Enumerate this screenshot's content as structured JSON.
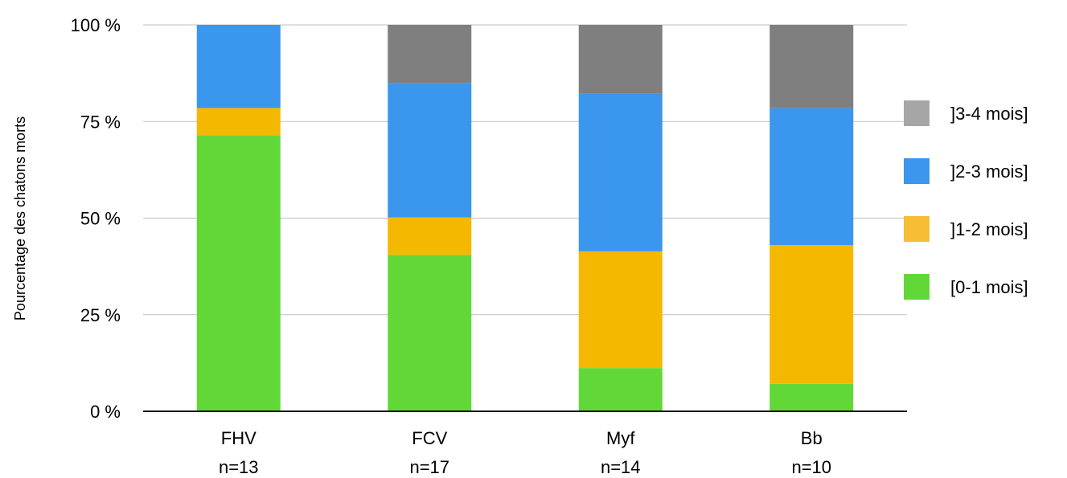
{
  "chart_data": {
    "type": "bar",
    "stacked": true,
    "ylabel": "Pourcentage des chatons morts",
    "ylim": [
      0,
      100
    ],
    "yticks": [
      "0 %",
      "25 %",
      "50 %",
      "75 %",
      "100 %"
    ],
    "ytick_values": [
      0,
      25,
      50,
      75,
      100
    ],
    "grid": true,
    "legend_position": "right",
    "categories": [
      "FHV",
      "FCV",
      "Myf",
      "Bb"
    ],
    "category_sublabels": [
      "n=13",
      "n=17",
      "n=14",
      "n=10"
    ],
    "series": [
      {
        "name": "[0-1 mois]",
        "color": "#62d838",
        "values": [
          71.4,
          40.5,
          11.2,
          7.1
        ]
      },
      {
        "name": "]1-2 mois]",
        "color": "#f5b800",
        "values": [
          7.1,
          9.7,
          30.2,
          35.9
        ]
      },
      {
        "name": "]2-3 mois]",
        "color": "#3b96ee",
        "values": [
          21.5,
          34.8,
          40.8,
          35.5
        ]
      },
      {
        "name": "]3-4 mois]",
        "color": "#7f7f7f",
        "values": [
          0.0,
          15.0,
          17.8,
          21.5
        ]
      }
    ]
  }
}
